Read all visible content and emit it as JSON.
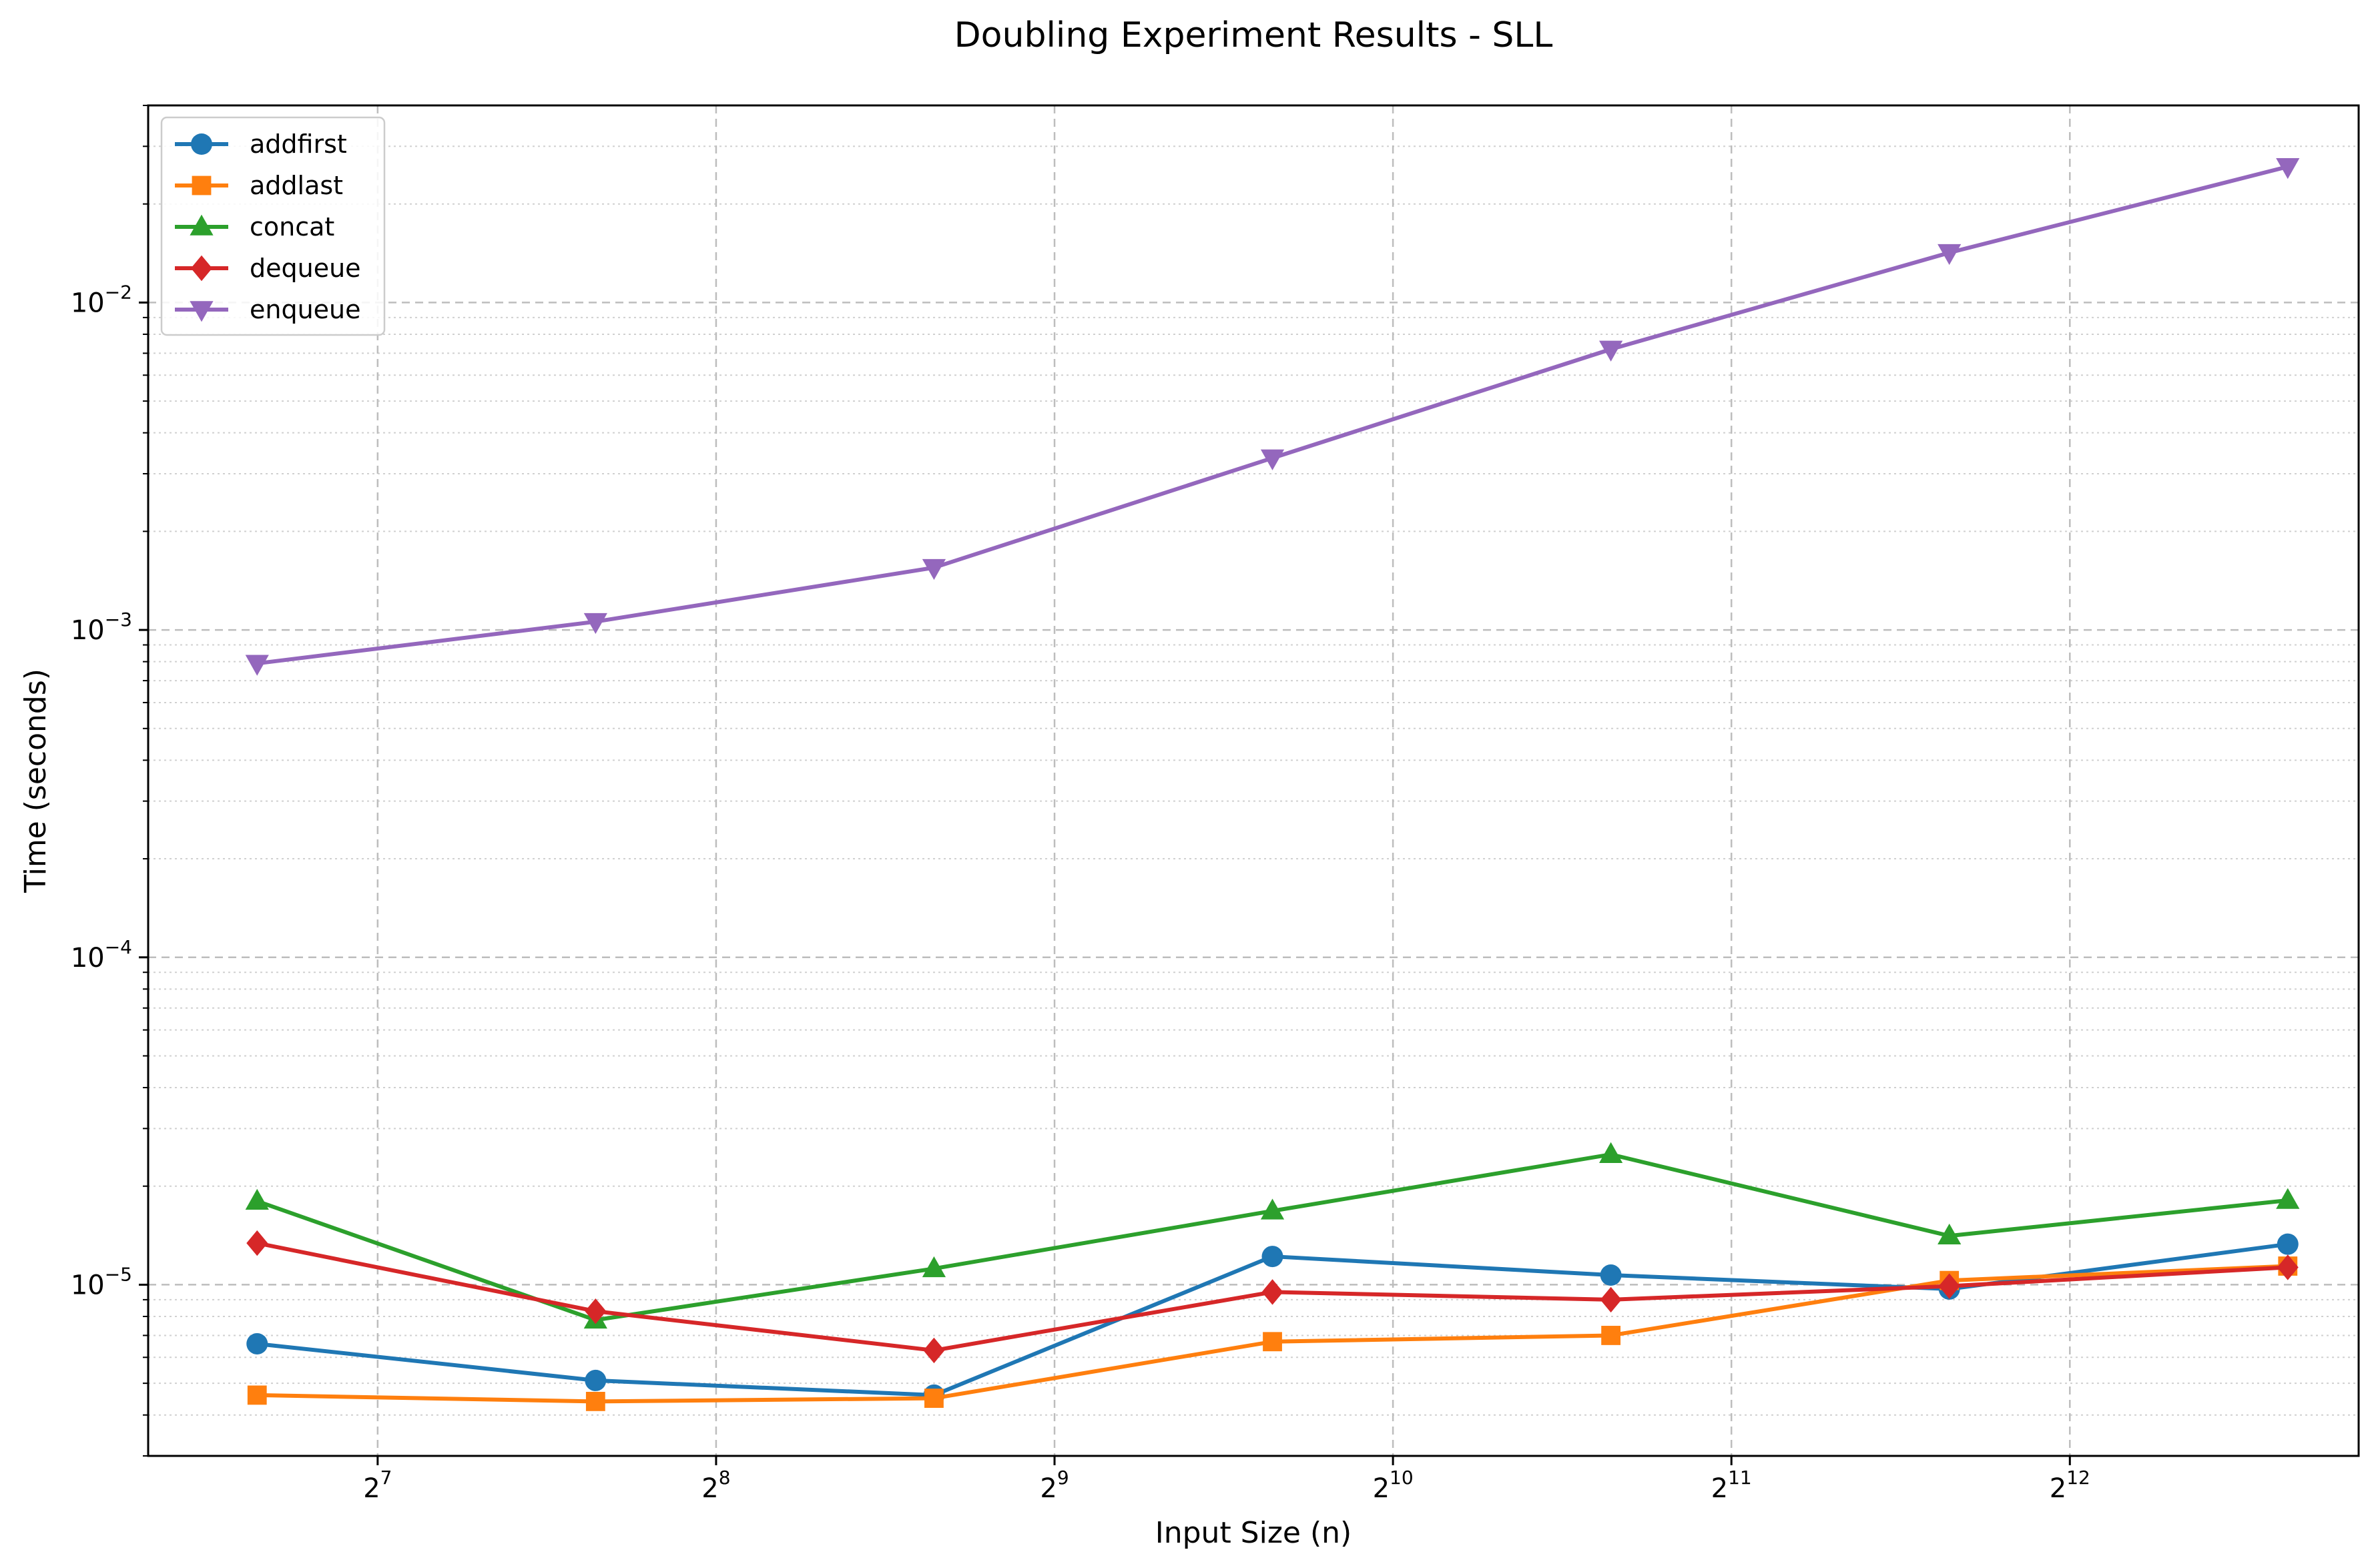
{
  "chart_data": {
    "type": "line",
    "title": "Doubling Experiment Results - SLL",
    "xlabel": "Input Size (n)",
    "ylabel": "Time (seconds)",
    "xscale": "log2",
    "yscale": "log10",
    "xlim": [
      80,
      7400
    ],
    "ylim": [
      3e-06,
      0.04
    ],
    "grid": true,
    "legend_position": "upper left",
    "x": [
      100,
      200,
      400,
      800,
      1600,
      3200,
      6400
    ],
    "xticks": [
      {
        "value": 128,
        "base": "2",
        "exp": "7"
      },
      {
        "value": 256,
        "base": "2",
        "exp": "8"
      },
      {
        "value": 512,
        "base": "2",
        "exp": "9"
      },
      {
        "value": 1024,
        "base": "2",
        "exp": "10"
      },
      {
        "value": 2048,
        "base": "2",
        "exp": "11"
      },
      {
        "value": 4096,
        "base": "2",
        "exp": "12"
      }
    ],
    "yticks": [
      {
        "value": 1e-05,
        "base": "10",
        "exp": "−5"
      },
      {
        "value": 0.0001,
        "base": "10",
        "exp": "−4"
      },
      {
        "value": 0.001,
        "base": "10",
        "exp": "−3"
      },
      {
        "value": 0.01,
        "base": "10",
        "exp": "−2"
      }
    ],
    "series": [
      {
        "name": "addfirst",
        "color": "#1f77b4",
        "marker": "circle",
        "values": [
          6.6e-06,
          5.1e-06,
          4.6e-06,
          1.22e-05,
          1.07e-05,
          9.7e-06,
          1.33e-05
        ]
      },
      {
        "name": "addlast",
        "color": "#ff7f0e",
        "marker": "square",
        "values": [
          4.6e-06,
          4.4e-06,
          4.5e-06,
          6.7e-06,
          7e-06,
          1.03e-05,
          1.14e-05
        ]
      },
      {
        "name": "concat",
        "color": "#2ca02c",
        "marker": "triangle-up",
        "values": [
          1.8e-05,
          7.8e-06,
          1.12e-05,
          1.68e-05,
          2.5e-05,
          1.41e-05,
          1.81e-05
        ]
      },
      {
        "name": "dequeue",
        "color": "#d62728",
        "marker": "diamond",
        "values": [
          1.34e-05,
          8.3e-06,
          6.3e-06,
          9.5e-06,
          9e-06,
          9.9e-06,
          1.13e-05
        ]
      },
      {
        "name": "enqueue",
        "color": "#9467bd",
        "marker": "triangle-down",
        "values": [
          0.00079,
          0.00106,
          0.00155,
          0.00335,
          0.0072,
          0.0142,
          0.026
        ]
      }
    ]
  }
}
